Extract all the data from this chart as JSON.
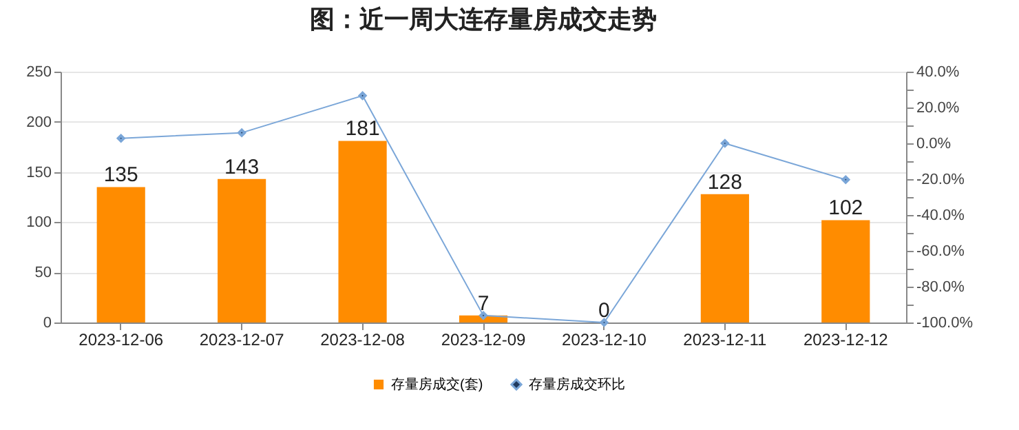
{
  "chart_data": {
    "type": "bar",
    "title": "图：近一周大连存量房成交走势",
    "categories": [
      "2023-12-06",
      "2023-12-07",
      "2023-12-08",
      "2023-12-09",
      "2023-12-10",
      "2023-12-11",
      "2023-12-12"
    ],
    "series": [
      {
        "name": "存量房成交(套)",
        "color": "#ff8c00",
        "values": [
          135,
          143,
          181,
          7,
          0,
          128,
          102
        ],
        "value_labels": [
          "135",
          "143",
          "181",
          "7",
          "0",
          "128",
          "102"
        ]
      },
      {
        "name": "存量房成交环比",
        "type": "line",
        "axis": "y2",
        "color": "#7aa6d8",
        "values": [
          2.8,
          5.9,
          26.6,
          -96.1,
          -100,
          0,
          -20.3
        ]
      }
    ],
    "ylim": [
      0,
      250
    ],
    "yticks": [
      0,
      50,
      100,
      150,
      200,
      250
    ],
    "y2lim": [
      -100,
      40
    ],
    "y2ticks": [
      {
        "value": -100,
        "label": "-100.0%"
      },
      {
        "value": -90,
        "label": null
      },
      {
        "value": -80,
        "label": "-80.0%"
      },
      {
        "value": -70,
        "label": null
      },
      {
        "value": -60,
        "label": "-60.0%"
      },
      {
        "value": -50,
        "label": null
      },
      {
        "value": -40,
        "label": "-40.0%"
      },
      {
        "value": -30,
        "label": null
      },
      {
        "value": -20,
        "label": "-20.0%"
      },
      {
        "value": -10,
        "label": null
      },
      {
        "value": 0,
        "label": "0.0%"
      },
      {
        "value": 10,
        "label": null
      },
      {
        "value": 20,
        "label": "20.0%"
      },
      {
        "value": 30,
        "label": null
      },
      {
        "value": 40,
        "label": "40.0%"
      }
    ],
    "grid": "y",
    "legend": "bottom",
    "marker": "diamond"
  }
}
